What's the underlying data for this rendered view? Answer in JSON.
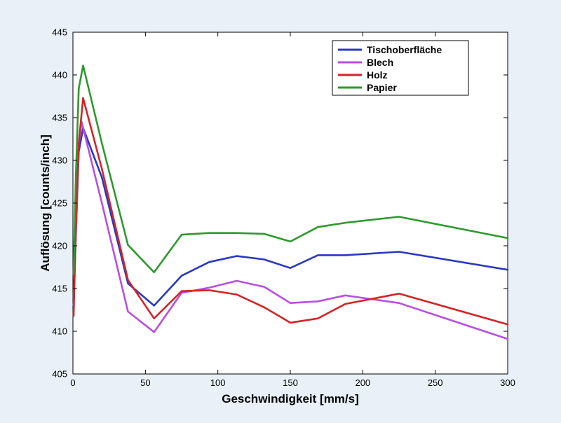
{
  "chart_data": {
    "type": "line",
    "title": "",
    "xlabel": "Geschwindigkeit [mm/s]",
    "ylabel": "Auflösung [counts/inch]",
    "xlim": [
      0,
      300
    ],
    "ylim": [
      405,
      445
    ],
    "xticks": [
      0,
      50,
      100,
      150,
      200,
      250,
      300
    ],
    "yticks": [
      405,
      410,
      415,
      420,
      425,
      430,
      435,
      440,
      445
    ],
    "grid": false,
    "legend_position": "top-right",
    "series": [
      {
        "name": "Tischoberfläche",
        "color": "#2a38c2",
        "x": [
          0.5,
          2,
          4,
          7,
          20,
          38,
          56,
          75,
          94,
          113,
          132,
          150,
          169,
          188,
          225,
          300
        ],
        "y": [
          414,
          421,
          431,
          433.8,
          428,
          415.6,
          413,
          416.5,
          418.1,
          418.8,
          418.4,
          417.4,
          418.9,
          418.9,
          419.3,
          417.2
        ]
      },
      {
        "name": "Blech",
        "color": "#b84fe0",
        "x": [
          0.5,
          2,
          4,
          6,
          20,
          38,
          56,
          75,
          94,
          113,
          132,
          150,
          169,
          188,
          225,
          300
        ],
        "y": [
          413,
          421,
          432,
          434.5,
          425,
          412.3,
          409.9,
          414.5,
          415.1,
          415.9,
          415.2,
          413.3,
          413.5,
          414.2,
          413.3,
          409.1
        ]
      },
      {
        "name": "Holz",
        "color": "#d42326",
        "x": [
          0.5,
          2,
          4,
          7,
          20,
          38,
          56,
          75,
          94,
          113,
          132,
          150,
          169,
          188,
          225,
          300
        ],
        "y": [
          411.8,
          422,
          432,
          437.3,
          429,
          416,
          411.5,
          414.7,
          414.8,
          414.3,
          412.8,
          411,
          411.5,
          413.2,
          414.4,
          410.8
        ]
      },
      {
        "name": "Papier",
        "color": "#2d9a2d",
        "x": [
          0.5,
          2,
          4,
          7,
          20,
          38,
          56,
          75,
          94,
          113,
          132,
          150,
          169,
          188,
          225,
          300
        ],
        "y": [
          416.7,
          428,
          438.4,
          441.1,
          432,
          420.1,
          416.9,
          421.3,
          421.5,
          421.5,
          421.4,
          420.5,
          422.2,
          422.7,
          423.4,
          420.9
        ]
      }
    ]
  }
}
